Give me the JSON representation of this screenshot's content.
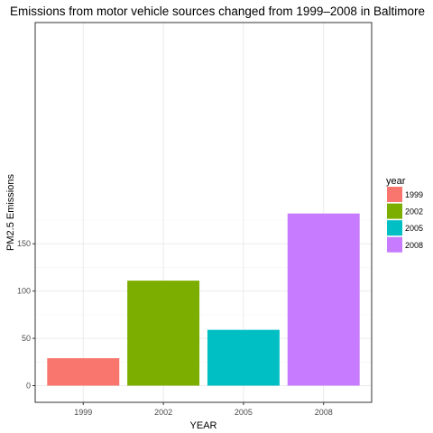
{
  "chart_data": {
    "type": "bar",
    "title": "Emissions from motor vehicle sources changed from 1999–2008 in Baltimore",
    "xlabel": "YEAR",
    "ylabel": "PM2.5 Emissions",
    "categories": [
      "1999",
      "2002",
      "2005",
      "2008"
    ],
    "values": [
      29,
      111,
      59,
      182
    ],
    "ylim": [
      0,
      190
    ],
    "yticks": [
      0,
      50,
      100,
      150
    ],
    "grid": true,
    "legend": {
      "title": "year",
      "placement": "right",
      "entries": [
        "1999",
        "2002",
        "2005",
        "2008"
      ]
    },
    "colors": [
      "#F8766D",
      "#7CAE00",
      "#00BFC4",
      "#C77CFF"
    ]
  }
}
